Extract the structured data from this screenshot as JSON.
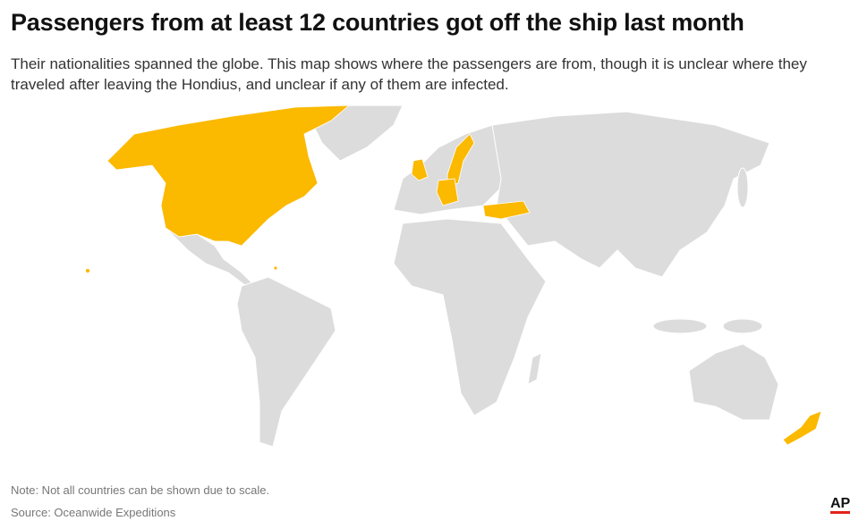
{
  "header": {
    "title": "Passengers from at least 12 countries got off the ship last month",
    "subtitle": "Their nationalities spanned the globe. This map shows where the passengers are from, though it is unclear where they traveled after leaving the Hondius, and unclear if any of them are infected."
  },
  "map": {
    "highlight_color": "#fbb900",
    "base_color": "#dcdcdc"
  },
  "footer": {
    "note": "Note: Not all countries can be shown due to scale.",
    "source": "Source: Oceanwide Expeditions",
    "logo": "AP"
  }
}
